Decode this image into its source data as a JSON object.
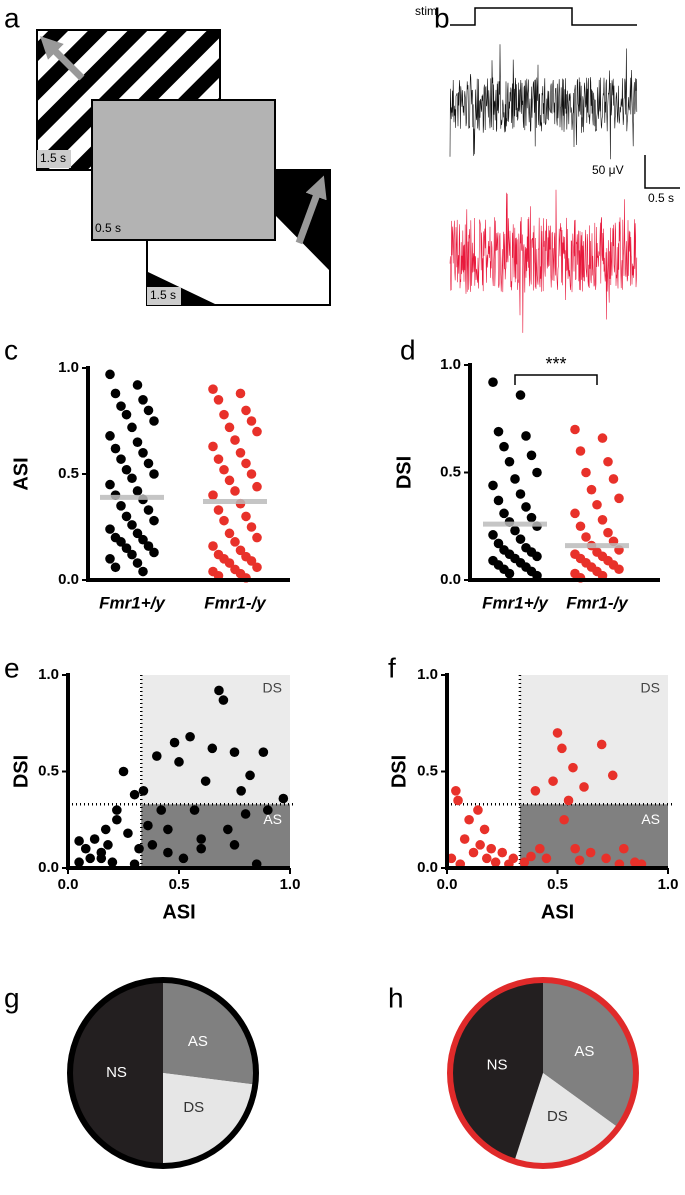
{
  "stimulus_panel": {
    "label": "a",
    "durations": [
      "1.5 s",
      "0.5 s",
      "1.5 s"
    ]
  },
  "recording_panel": {
    "label": "b",
    "stim": "stim",
    "scale_amplitude": "50 μV",
    "scale_time": "0.5 s",
    "trace_colors": [
      "#111111",
      "#e8193c"
    ]
  },
  "chart_data": [
    {
      "type": "strip",
      "label": "c",
      "ylabel": "ASI",
      "categories": [
        "Fmr1+/y",
        "Fmr1-/y"
      ],
      "colors": [
        "#000000",
        "#e8312a"
      ],
      "ylim": [
        0,
        1
      ],
      "yticks": [
        {
          "value": 0,
          "label": "0.0"
        },
        {
          "value": 0.5,
          "label": "0.5"
        },
        {
          "value": 1,
          "label": "1.0"
        }
      ],
      "values": [
        [
          0.97,
          0.92,
          0.88,
          0.85,
          0.82,
          0.8,
          0.78,
          0.75,
          0.72,
          0.68,
          0.65,
          0.62,
          0.6,
          0.57,
          0.55,
          0.52,
          0.5,
          0.48,
          0.45,
          0.42,
          0.4,
          0.38,
          0.35,
          0.33,
          0.3,
          0.28,
          0.26,
          0.24,
          0.22,
          0.2,
          0.19,
          0.18,
          0.16,
          0.15,
          0.13,
          0.12,
          0.1,
          0.08,
          0.06,
          0.04
        ],
        [
          0.9,
          0.88,
          0.85,
          0.8,
          0.78,
          0.75,
          0.72,
          0.7,
          0.66,
          0.63,
          0.6,
          0.57,
          0.55,
          0.52,
          0.5,
          0.47,
          0.44,
          0.42,
          0.4,
          0.36,
          0.33,
          0.3,
          0.28,
          0.25,
          0.22,
          0.2,
          0.18,
          0.16,
          0.14,
          0.12,
          0.11,
          0.1,
          0.09,
          0.08,
          0.06,
          0.05,
          0.04,
          0.03,
          0.02,
          0.01
        ]
      ],
      "means": [
        0.39,
        0.37
      ]
    },
    {
      "type": "strip",
      "label": "d",
      "ylabel": "DSI",
      "categories": [
        "Fmr1+/y",
        "Fmr1-/y"
      ],
      "colors": [
        "#000000",
        "#e8312a"
      ],
      "annotation": "***",
      "ylim": [
        0,
        1
      ],
      "yticks": [
        {
          "value": 0,
          "label": "0.0"
        },
        {
          "value": 0.5,
          "label": "0.5"
        },
        {
          "value": 1,
          "label": "1.0"
        }
      ],
      "values": [
        [
          0.92,
          0.86,
          0.69,
          0.67,
          0.62,
          0.58,
          0.55,
          0.5,
          0.47,
          0.44,
          0.4,
          0.37,
          0.34,
          0.31,
          0.29,
          0.27,
          0.25,
          0.23,
          0.21,
          0.19,
          0.17,
          0.15,
          0.14,
          0.13,
          0.12,
          0.11,
          0.1,
          0.09,
          0.08,
          0.07,
          0.06,
          0.05,
          0.04,
          0.03,
          0.02
        ],
        [
          0.7,
          0.66,
          0.6,
          0.55,
          0.5,
          0.47,
          0.42,
          0.38,
          0.35,
          0.31,
          0.28,
          0.25,
          0.22,
          0.2,
          0.18,
          0.16,
          0.14,
          0.13,
          0.12,
          0.11,
          0.1,
          0.09,
          0.08,
          0.07,
          0.06,
          0.05,
          0.04,
          0.03,
          0.02,
          0.01
        ]
      ],
      "means": [
        0.26,
        0.16
      ]
    },
    {
      "type": "scatter",
      "label": "e",
      "xlabel": "ASI",
      "ylabel": "DSI",
      "color": "#000000",
      "threshold": 0.33,
      "regions": [
        {
          "label": "DS",
          "color": "#ebebeb"
        },
        {
          "label": "AS",
          "color": "#808080"
        }
      ],
      "xlim": [
        0,
        1
      ],
      "ylim": [
        0,
        1
      ],
      "xticks": [
        {
          "value": 0,
          "label": "0.0"
        },
        {
          "value": 0.5,
          "label": "0.5"
        },
        {
          "value": 1,
          "label": "1.0"
        }
      ],
      "yticks": [
        {
          "value": 0,
          "label": "0.0"
        },
        {
          "value": 0.5,
          "label": "0.5"
        },
        {
          "value": 1,
          "label": "1.0"
        }
      ],
      "x": [
        0.05,
        0.08,
        0.1,
        0.12,
        0.15,
        0.17,
        0.18,
        0.2,
        0.22,
        0.25,
        0.27,
        0.3,
        0.32,
        0.34,
        0.36,
        0.38,
        0.4,
        0.42,
        0.45,
        0.48,
        0.5,
        0.52,
        0.55,
        0.57,
        0.6,
        0.62,
        0.65,
        0.68,
        0.7,
        0.72,
        0.75,
        0.78,
        0.8,
        0.82,
        0.85,
        0.88,
        0.9,
        0.97,
        0.05,
        0.15,
        0.22,
        0.3,
        0.45,
        0.6,
        0.75
      ],
      "y": [
        0.03,
        0.1,
        0.05,
        0.15,
        0.08,
        0.2,
        0.12,
        0.03,
        0.25,
        0.5,
        0.18,
        0.38,
        0.1,
        0.4,
        0.22,
        0.12,
        0.58,
        0.3,
        0.2,
        0.65,
        0.55,
        0.05,
        0.68,
        0.3,
        0.1,
        0.45,
        0.62,
        0.92,
        0.87,
        0.2,
        0.6,
        0.4,
        0.28,
        0.48,
        0.02,
        0.6,
        0.3,
        0.36,
        0.14,
        0.05,
        0.3,
        0.02,
        0.08,
        0.15,
        0.12
      ]
    },
    {
      "type": "scatter",
      "label": "f",
      "xlabel": "ASI",
      "ylabel": "DSI",
      "color": "#e8312a",
      "threshold": 0.33,
      "regions": [
        {
          "label": "DS",
          "color": "#ebebeb"
        },
        {
          "label": "AS",
          "color": "#808080"
        }
      ],
      "xlim": [
        0,
        1
      ],
      "ylim": [
        0,
        1
      ],
      "xticks": [
        {
          "value": 0,
          "label": "0.0"
        },
        {
          "value": 0.5,
          "label": "0.5"
        },
        {
          "value": 1,
          "label": "1.0"
        }
      ],
      "yticks": [
        {
          "value": 0,
          "label": "0.0"
        },
        {
          "value": 0.5,
          "label": "0.5"
        },
        {
          "value": 1,
          "label": "1.0"
        }
      ],
      "x": [
        0.02,
        0.04,
        0.05,
        0.06,
        0.08,
        0.1,
        0.12,
        0.14,
        0.15,
        0.17,
        0.18,
        0.2,
        0.22,
        0.25,
        0.28,
        0.3,
        0.35,
        0.38,
        0.4,
        0.42,
        0.45,
        0.48,
        0.5,
        0.52,
        0.53,
        0.55,
        0.57,
        0.58,
        0.6,
        0.62,
        0.65,
        0.7,
        0.72,
        0.75,
        0.78,
        0.8,
        0.85,
        0.88
      ],
      "y": [
        0.05,
        0.4,
        0.35,
        0.02,
        0.15,
        0.25,
        0.08,
        0.3,
        0.12,
        0.2,
        0.05,
        0.1,
        0.03,
        0.08,
        0.02,
        0.05,
        0.03,
        0.06,
        0.4,
        0.1,
        0.05,
        0.45,
        0.7,
        0.62,
        0.25,
        0.35,
        0.52,
        0.1,
        0.04,
        0.42,
        0.08,
        0.64,
        0.05,
        0.48,
        0.02,
        0.1,
        0.03,
        0.02
      ]
    },
    {
      "type": "pie",
      "label": "g",
      "categories": [
        "AS",
        "DS",
        "NS"
      ],
      "values": [
        27,
        23,
        50
      ],
      "colors": [
        "#808080",
        "#e6e6e6",
        "#231f20"
      ],
      "text_colors": [
        "#ffffff",
        "#333333",
        "#ffffff"
      ],
      "border_color": "#000000"
    },
    {
      "type": "pie",
      "label": "h",
      "categories": [
        "AS",
        "DS",
        "NS"
      ],
      "values": [
        35,
        20,
        45
      ],
      "colors": [
        "#808080",
        "#e6e6e6",
        "#231f20"
      ],
      "text_colors": [
        "#ffffff",
        "#333333",
        "#ffffff"
      ],
      "border_color": "#e02a2a"
    }
  ]
}
